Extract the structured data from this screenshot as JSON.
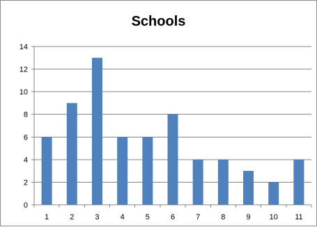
{
  "chart_data": {
    "type": "bar",
    "title": "Schools",
    "xlabel": "",
    "ylabel": "",
    "categories": [
      "1",
      "2",
      "3",
      "4",
      "5",
      "6",
      "7",
      "8",
      "9",
      "10",
      "11"
    ],
    "values": [
      6,
      9,
      13,
      6,
      6,
      8,
      4,
      4,
      3,
      2,
      4
    ],
    "ylim": [
      0,
      14
    ],
    "yticks": [
      0,
      2,
      4,
      6,
      8,
      10,
      12,
      14
    ],
    "grid": true,
    "legend": "none",
    "bar_color": "#4f81bd",
    "grid_color": "#868686"
  }
}
